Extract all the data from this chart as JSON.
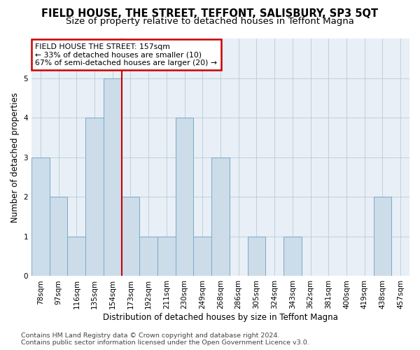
{
  "title": "FIELD HOUSE, THE STREET, TEFFONT, SALISBURY, SP3 5QT",
  "subtitle": "Size of property relative to detached houses in Teffont Magna",
  "xlabel": "Distribution of detached houses by size in Teffont Magna",
  "ylabel": "Number of detached properties",
  "categories": [
    "78sqm",
    "97sqm",
    "116sqm",
    "135sqm",
    "154sqm",
    "173sqm",
    "192sqm",
    "211sqm",
    "230sqm",
    "249sqm",
    "268sqm",
    "286sqm",
    "305sqm",
    "324sqm",
    "343sqm",
    "362sqm",
    "381sqm",
    "400sqm",
    "419sqm",
    "438sqm",
    "457sqm"
  ],
  "values": [
    3,
    2,
    1,
    4,
    5,
    2,
    1,
    1,
    4,
    1,
    3,
    0,
    1,
    0,
    1,
    0,
    0,
    0,
    0,
    2,
    0
  ],
  "bar_color": "#ccdce9",
  "bar_edge_color": "#7aaac8",
  "highlight_index": 4,
  "highlight_line_color": "#cc0000",
  "annotation_title": "FIELD HOUSE THE STREET: 157sqm",
  "annotation_line1": "← 33% of detached houses are smaller (10)",
  "annotation_line2": "67% of semi-detached houses are larger (20) →",
  "annotation_box_color": "#cc0000",
  "ylim": [
    0,
    6
  ],
  "yticks": [
    0,
    1,
    2,
    3,
    4,
    5
  ],
  "footer_line1": "Contains HM Land Registry data © Crown copyright and database right 2024.",
  "footer_line2": "Contains public sector information licensed under the Open Government Licence v3.0.",
  "bg_color": "#ffffff",
  "plot_bg_color": "#e8eff6",
  "grid_color": "#b8ccd8",
  "title_fontsize": 10.5,
  "subtitle_fontsize": 9.5,
  "axis_label_fontsize": 8.5,
  "tick_fontsize": 7.5,
  "annotation_fontsize": 7.8,
  "footer_fontsize": 6.8
}
